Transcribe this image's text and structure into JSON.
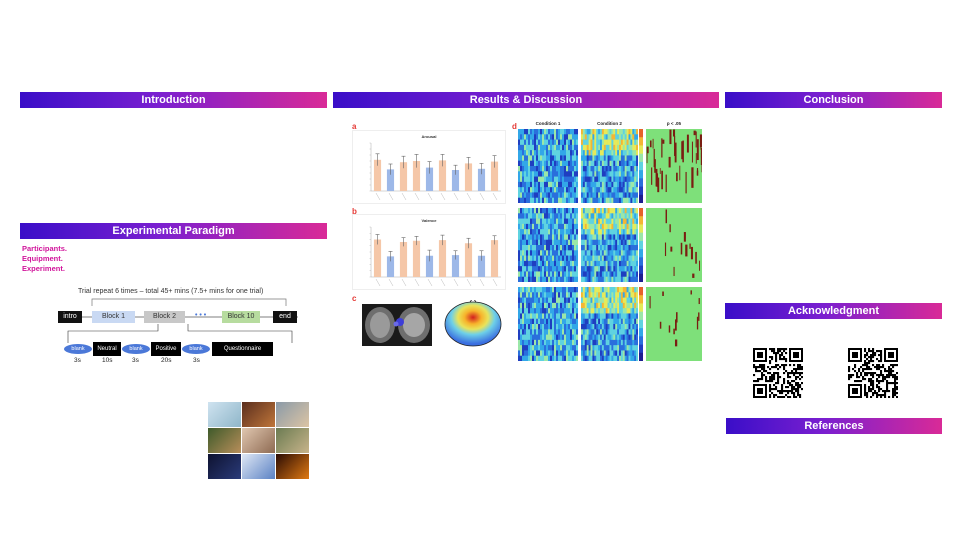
{
  "sections": {
    "introduction": "Introduction",
    "results": "Results & Discussion",
    "conclusion": "Conclusion",
    "paradigm": "Experimental Paradigm",
    "acknowledgment": "Acknowledgment",
    "references": "References"
  },
  "paradigm_labels": {
    "participants": "Participants.",
    "equipment": "Equipment.",
    "experiment": "Experiment."
  },
  "trial_header": "Trial repeat 6 times – total 45+ mins (7.5+ mins for one trial)",
  "flow": {
    "intro": "intro",
    "block1": "Block 1",
    "block2": "Block 2",
    "dots": "• • •",
    "block10": "Block 10",
    "end": "end"
  },
  "sequence": {
    "blank": "blank",
    "neutral": "Neutral",
    "positive": "Positive",
    "questionnaire": "Questionnaire",
    "durations": [
      "3s",
      "10s",
      "3s",
      "20s",
      "3s"
    ]
  },
  "panels": {
    "a": "a",
    "b": "b",
    "c": "c",
    "d": "d"
  },
  "chart_data": [
    {
      "type": "bar",
      "title": "Arousal",
      "categories": [
        "1",
        "2",
        "3",
        "4",
        "5",
        "6",
        "7",
        "8",
        "9",
        "10"
      ],
      "values": [
        5.2,
        3.6,
        4.8,
        5.0,
        3.9,
        5.1,
        3.5,
        4.6,
        3.7,
        4.9
      ],
      "errors": [
        1.0,
        0.9,
        1.0,
        1.1,
        1.0,
        1.0,
        0.8,
        1.0,
        0.9,
        1.0
      ],
      "colors": [
        "#f5c7a8",
        "#9db8e8",
        "#f5c7a8",
        "#f5c7a8",
        "#9db8e8",
        "#f5c7a8",
        "#9db8e8",
        "#f5c7a8",
        "#9db8e8",
        "#f5c7a8"
      ],
      "ylim": [
        0,
        8
      ]
    },
    {
      "type": "bar",
      "title": "Valence",
      "categories": [
        "1",
        "2",
        "3",
        "4",
        "5",
        "6",
        "7",
        "8",
        "9",
        "10"
      ],
      "values": [
        6.0,
        3.3,
        5.6,
        5.8,
        3.4,
        5.9,
        3.5,
        5.4,
        3.4,
        5.9
      ],
      "errors": [
        0.8,
        0.8,
        0.7,
        0.7,
        0.9,
        0.8,
        0.7,
        0.8,
        0.8,
        0.7
      ],
      "colors": [
        "#f5c7a8",
        "#9db8e8",
        "#f5c7a8",
        "#f5c7a8",
        "#9db8e8",
        "#f5c7a8",
        "#9db8e8",
        "#f5c7a8",
        "#9db8e8",
        "#f5c7a8"
      ],
      "ylim": [
        0,
        8
      ]
    }
  ],
  "heatmap_titles": [
    "Condition 1",
    "Condition 2",
    "p < .05"
  ]
}
